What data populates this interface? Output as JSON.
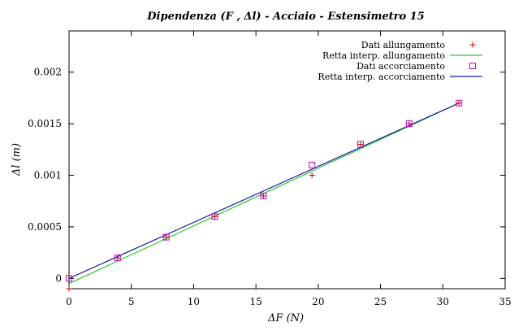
{
  "chart_data": {
    "type": "scatter",
    "title": "Dipendenza (F , Δl) - Acciaio - Estensimetro 15",
    "xlabel": "ΔF (N)",
    "ylabel": "Δl (m)",
    "xlim": [
      0,
      35
    ],
    "ylim": [
      -0.0001,
      0.0024
    ],
    "xticks": [
      "0",
      "5",
      "10",
      "15",
      "20",
      "25",
      "30",
      "35"
    ],
    "xtick_values": [
      0,
      5,
      10,
      15,
      20,
      25,
      30,
      35
    ],
    "yticks": [
      "0",
      "0.0005",
      "0.001",
      "0.0015",
      "0.002"
    ],
    "ytick_values": [
      0,
      0.0005,
      0.001,
      0.0015,
      0.002
    ],
    "grid": false,
    "legend_position": "top-right",
    "series": [
      {
        "name": "Dati allungamento",
        "kind": "points",
        "marker": "plus",
        "color": "#cc0000",
        "points": [
          [
            0,
            -0.0001
          ],
          [
            3.9,
            0.0002
          ],
          [
            7.8,
            0.0004
          ],
          [
            11.7,
            0.0006
          ],
          [
            15.6,
            0.0008
          ],
          [
            19.5,
            0.001
          ],
          [
            23.4,
            0.0013
          ],
          [
            27.3,
            0.0015
          ],
          [
            31.3,
            0.0017
          ]
        ]
      },
      {
        "name": "Retta interp. allungamento",
        "kind": "line",
        "color": "#22cc22",
        "points": [
          [
            0,
            -5e-05
          ],
          [
            31.3,
            0.0017
          ]
        ]
      },
      {
        "name": "Dati accorciamento",
        "kind": "points",
        "marker": "square",
        "color": "#cc00cc",
        "points": [
          [
            0,
            0
          ],
          [
            3.9,
            0.0002
          ],
          [
            7.8,
            0.0004
          ],
          [
            11.7,
            0.0006
          ],
          [
            15.6,
            0.0008
          ],
          [
            19.5,
            0.0011
          ],
          [
            23.4,
            0.0013
          ],
          [
            27.3,
            0.0015
          ],
          [
            31.3,
            0.0017
          ]
        ]
      },
      {
        "name": "Retta interp. accorciamento",
        "kind": "line",
        "color": "#1a1aa8",
        "points": [
          [
            0,
            0
          ],
          [
            31.3,
            0.0017
          ]
        ]
      }
    ]
  }
}
